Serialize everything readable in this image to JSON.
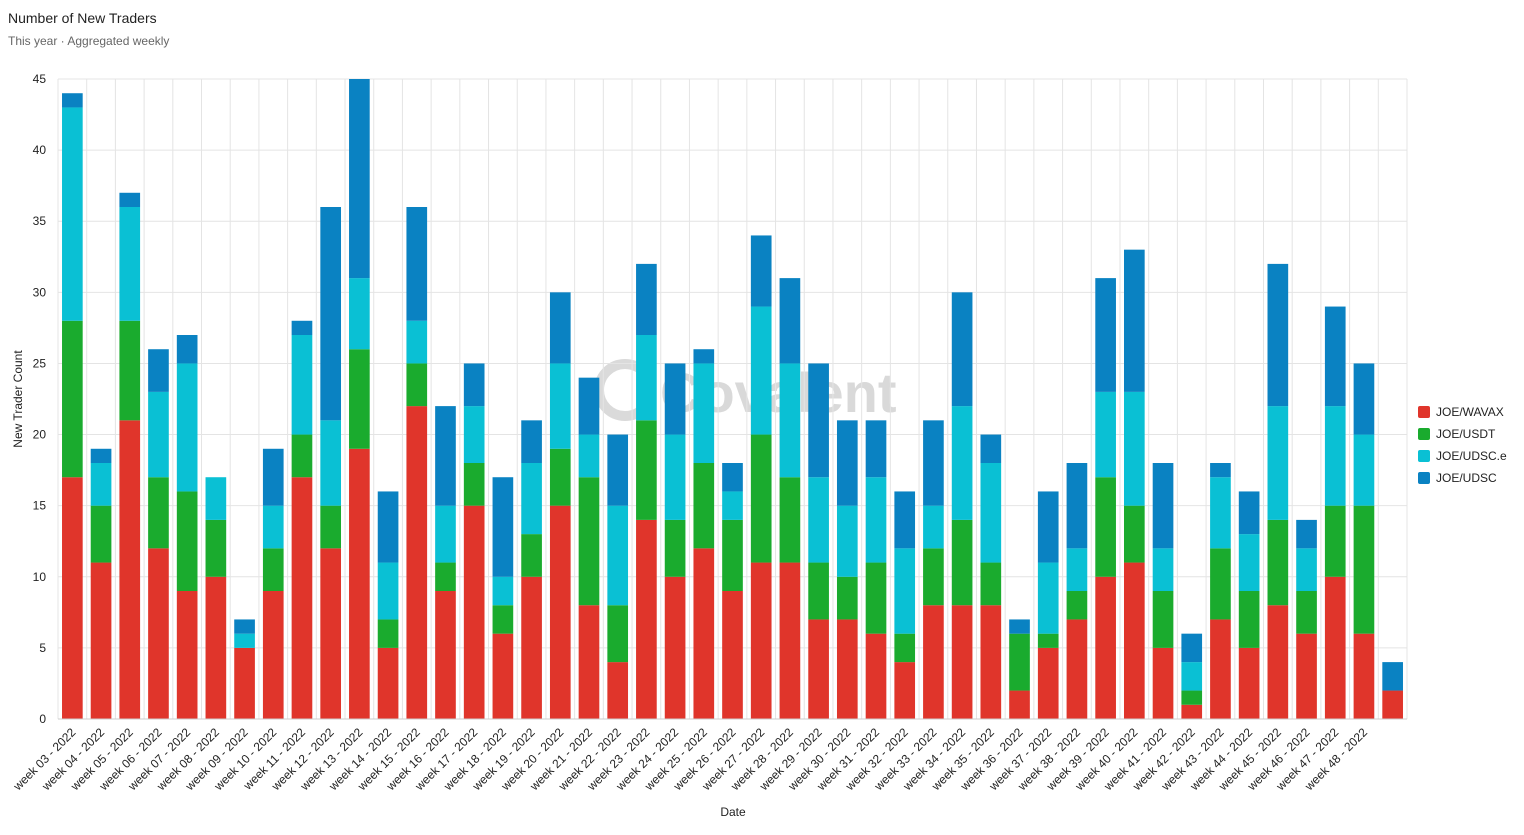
{
  "chart_data": {
    "type": "stacked-bar",
    "title": "Number of New Traders",
    "subtitle": "This year · Aggregated weekly",
    "xlabel": "Date",
    "ylabel": "New Trader Count",
    "watermark": "Covalent",
    "categories": [
      "week 03 - 2022",
      "week 04 - 2022",
      "week 05 - 2022",
      "week 06 - 2022",
      "week 07 - 2022",
      "week 08 - 2022",
      "week 09 - 2022",
      "week 10 - 2022",
      "week 11 - 2022",
      "week 12 - 2022",
      "week 13 - 2022",
      "week 14 - 2022",
      "week 15 - 2022",
      "week 16 - 2022",
      "week 17 - 2022",
      "week 18 - 2022",
      "week 19 - 2022",
      "week 20 - 2022",
      "week 21 - 2022",
      "week 22 - 2022",
      "week 23 - 2022",
      "week 24 - 2022",
      "week 25 - 2022",
      "week 26 - 2022",
      "week 27 - 2022",
      "week 28 - 2022",
      "week 29 - 2022",
      "week 30 - 2022",
      "week 31 - 2022",
      "week 32 - 2022",
      "week 33 - 2022",
      "week 34 - 2022",
      "week 35 - 2022",
      "week 36 - 2022",
      "week 37 - 2022",
      "week 38 - 2022",
      "week 39 - 2022",
      "week 40 - 2022",
      "week 41 - 2022",
      "week 42 - 2022",
      "week 43 - 2022",
      "week 44 - 2022",
      "week 45 - 2022",
      "week 46 - 2022",
      "week 47 - 2022",
      "week 48 - 2022",
      null
    ],
    "series": [
      {
        "name": "JOE/WAVAX",
        "color": "#e0352b",
        "values": [
          17,
          11,
          21,
          12,
          9,
          10,
          5,
          9,
          17,
          12,
          19,
          5,
          22,
          9,
          15,
          6,
          10,
          15,
          8,
          4,
          14,
          10,
          12,
          9,
          11,
          11,
          7,
          7,
          6,
          4,
          8,
          8,
          8,
          2,
          5,
          7,
          10,
          11,
          5,
          1,
          7,
          5,
          8,
          6,
          10,
          6,
          2
        ]
      },
      {
        "name": "JOE/USDT",
        "color": "#1aab2e",
        "values": [
          11,
          4,
          7,
          5,
          7,
          4,
          0,
          3,
          3,
          3,
          7,
          2,
          3,
          2,
          3,
          2,
          3,
          4,
          9,
          4,
          7,
          4,
          6,
          5,
          9,
          6,
          4,
          3,
          5,
          2,
          4,
          6,
          3,
          4,
          1,
          2,
          7,
          4,
          4,
          1,
          5,
          4,
          6,
          3,
          5,
          9,
          0
        ]
      },
      {
        "name": "JOE/UDSC.e",
        "color": "#0ac0d4",
        "values": [
          15,
          3,
          8,
          6,
          9,
          3,
          1,
          3,
          7,
          6,
          5,
          4,
          3,
          4,
          4,
          2,
          5,
          6,
          3,
          7,
          6,
          6,
          7,
          2,
          9,
          8,
          6,
          5,
          6,
          6,
          3,
          8,
          7,
          0,
          5,
          3,
          6,
          8,
          3,
          2,
          5,
          4,
          8,
          3,
          7,
          5,
          0
        ]
      },
      {
        "name": "JOE/UDSC",
        "color": "#0a82c2",
        "values": [
          1,
          1,
          1,
          3,
          2,
          0,
          1,
          4,
          1,
          15,
          14,
          5,
          8,
          7,
          3,
          7,
          3,
          5,
          4,
          5,
          5,
          5,
          1,
          2,
          5,
          6,
          8,
          6,
          4,
          4,
          6,
          8,
          2,
          1,
          5,
          6,
          8,
          10,
          6,
          2,
          1,
          3,
          10,
          2,
          7,
          5,
          2
        ]
      }
    ],
    "ylim": [
      0,
      45
    ],
    "yticks": [
      0,
      5,
      10,
      15,
      20,
      25,
      30,
      35,
      40,
      45
    ],
    "grid": true,
    "legend": "right"
  }
}
